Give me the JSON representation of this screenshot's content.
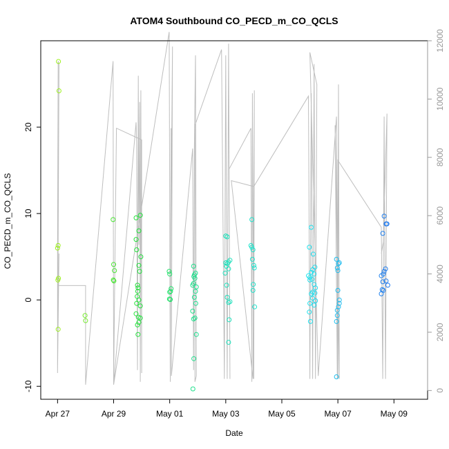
{
  "chart_data": {
    "type": "scatter",
    "title": "ATOM4 Southbound CO_PECD_m_CO_QCLS",
    "xlabel": "Date",
    "ylabel": "CO_PECD_m_CO_QCLS",
    "x_tick_labels": [
      "Apr 27",
      "Apr 29",
      "May 01",
      "May 03",
      "May 05",
      "May 07",
      "May 09"
    ],
    "x_tick_days": [
      0,
      2,
      4,
      6,
      8,
      10,
      12
    ],
    "xlim_days": [
      -0.6,
      13.2
    ],
    "ylim": [
      -11.5,
      30.0
    ],
    "y_ticks": [
      -10,
      0,
      10,
      20
    ],
    "y_tick_labels": [
      "-10",
      "0",
      "10",
      "20"
    ],
    "y2lim": [
      -300,
      12000
    ],
    "y2_ticks": [
      0,
      2000,
      4000,
      6000,
      8000,
      10000,
      12000
    ],
    "y2_tick_labels": [
      "0",
      "2000",
      "4000",
      "6000",
      "8000",
      "10000",
      "12000"
    ],
    "secondary_series_color": "#bebebe",
    "points_color_gradient": [
      "#9df01e",
      "#1ee03a",
      "#1ee0b8",
      "#1ee8ee",
      "#1e78ee"
    ],
    "points": [
      {
        "x": 0.03,
        "y": 27.6
      },
      {
        "x": 0.05,
        "y": 24.2
      },
      {
        "x": 0.02,
        "y": 6.3
      },
      {
        "x": 0.0,
        "y": 6.0
      },
      {
        "x": 0.03,
        "y": 2.5
      },
      {
        "x": 0.01,
        "y": 2.3
      },
      {
        "x": 0.02,
        "y": -3.4
      },
      {
        "x": 0.98,
        "y": -1.8
      },
      {
        "x": 1.0,
        "y": -2.4
      },
      {
        "x": 1.98,
        "y": 9.3
      },
      {
        "x": 2.0,
        "y": 4.1
      },
      {
        "x": 2.03,
        "y": 3.4
      },
      {
        "x": 1.99,
        "y": 2.3
      },
      {
        "x": 2.01,
        "y": 2.2
      },
      {
        "x": 2.8,
        "y": 9.5
      },
      {
        "x": 2.95,
        "y": 9.8
      },
      {
        "x": 2.9,
        "y": 8.0
      },
      {
        "x": 2.8,
        "y": 7.0
      },
      {
        "x": 2.82,
        "y": 5.8
      },
      {
        "x": 2.97,
        "y": 5.0
      },
      {
        "x": 2.9,
        "y": 4.0
      },
      {
        "x": 2.93,
        "y": 3.3
      },
      {
        "x": 2.85,
        "y": 1.7
      },
      {
        "x": 2.87,
        "y": 1.4
      },
      {
        "x": 2.86,
        "y": 1.0
      },
      {
        "x": 2.84,
        "y": 0.4
      },
      {
        "x": 2.9,
        "y": 0.0
      },
      {
        "x": 2.82,
        "y": -0.4
      },
      {
        "x": 2.95,
        "y": -0.7
      },
      {
        "x": 2.8,
        "y": -1.6
      },
      {
        "x": 2.88,
        "y": -2.0
      },
      {
        "x": 2.95,
        "y": -2.1
      },
      {
        "x": 2.9,
        "y": -2.6
      },
      {
        "x": 2.85,
        "y": -2.9
      },
      {
        "x": 2.87,
        "y": -4.0
      },
      {
        "x": 3.98,
        "y": 3.3
      },
      {
        "x": 4.0,
        "y": 3.0
      },
      {
        "x": 4.05,
        "y": 1.3
      },
      {
        "x": 4.03,
        "y": 1.0
      },
      {
        "x": 4.0,
        "y": 0.9
      },
      {
        "x": 3.99,
        "y": 0.1
      },
      {
        "x": 4.02,
        "y": 0.05
      },
      {
        "x": 4.85,
        "y": 3.9
      },
      {
        "x": 4.92,
        "y": 3.1
      },
      {
        "x": 4.88,
        "y": 2.9
      },
      {
        "x": 4.86,
        "y": 2.7
      },
      {
        "x": 4.9,
        "y": 2.5
      },
      {
        "x": 4.85,
        "y": 1.9
      },
      {
        "x": 4.82,
        "y": 1.7
      },
      {
        "x": 4.95,
        "y": 1.5
      },
      {
        "x": 4.92,
        "y": 1.0
      },
      {
        "x": 4.88,
        "y": 0.3
      },
      {
        "x": 4.93,
        "y": -0.4
      },
      {
        "x": 4.82,
        "y": -1.3
      },
      {
        "x": 4.9,
        "y": -2.1
      },
      {
        "x": 4.85,
        "y": -2.2
      },
      {
        "x": 4.95,
        "y": -4.0
      },
      {
        "x": 4.86,
        "y": -6.8
      },
      {
        "x": 4.83,
        "y": -10.3
      },
      {
        "x": 6.0,
        "y": 7.4
      },
      {
        "x": 6.05,
        "y": 7.3
      },
      {
        "x": 6.15,
        "y": 4.6
      },
      {
        "x": 6.1,
        "y": 4.4
      },
      {
        "x": 6.0,
        "y": 4.3
      },
      {
        "x": 6.05,
        "y": 4.2
      },
      {
        "x": 6.02,
        "y": 3.9
      },
      {
        "x": 6.1,
        "y": 3.6
      },
      {
        "x": 5.98,
        "y": 3.1
      },
      {
        "x": 6.03,
        "y": 1.7
      },
      {
        "x": 6.05,
        "y": 0.3
      },
      {
        "x": 6.1,
        "y": -0.3
      },
      {
        "x": 6.15,
        "y": -0.2
      },
      {
        "x": 6.12,
        "y": -2.3
      },
      {
        "x": 6.1,
        "y": -4.9
      },
      {
        "x": 6.93,
        "y": 9.3
      },
      {
        "x": 6.9,
        "y": 6.3
      },
      {
        "x": 6.93,
        "y": 6.1
      },
      {
        "x": 6.97,
        "y": 5.8
      },
      {
        "x": 6.95,
        "y": 4.7
      },
      {
        "x": 7.0,
        "y": 4.0
      },
      {
        "x": 7.02,
        "y": 3.7
      },
      {
        "x": 6.98,
        "y": 1.8
      },
      {
        "x": 6.97,
        "y": 1.1
      },
      {
        "x": 7.03,
        "y": -0.8
      },
      {
        "x": 8.98,
        "y": 6.1
      },
      {
        "x": 9.05,
        "y": 8.4
      },
      {
        "x": 9.12,
        "y": 5.3
      },
      {
        "x": 9.18,
        "y": 3.8
      },
      {
        "x": 9.1,
        "y": 3.5
      },
      {
        "x": 9.05,
        "y": 3.2
      },
      {
        "x": 9.15,
        "y": 3.0
      },
      {
        "x": 8.95,
        "y": 2.8
      },
      {
        "x": 9.0,
        "y": 2.6
      },
      {
        "x": 9.08,
        "y": 2.4
      },
      {
        "x": 9.0,
        "y": 2.3
      },
      {
        "x": 9.15,
        "y": 1.8
      },
      {
        "x": 9.2,
        "y": 1.4
      },
      {
        "x": 9.1,
        "y": 0.9
      },
      {
        "x": 9.18,
        "y": 0.8
      },
      {
        "x": 9.05,
        "y": 0.7
      },
      {
        "x": 9.1,
        "y": 0.2
      },
      {
        "x": 9.2,
        "y": -0.1
      },
      {
        "x": 9.0,
        "y": -0.4
      },
      {
        "x": 9.15,
        "y": -0.6
      },
      {
        "x": 8.98,
        "y": -1.4
      },
      {
        "x": 9.02,
        "y": -2.5
      },
      {
        "x": 9.95,
        "y": 4.7
      },
      {
        "x": 10.05,
        "y": 4.3
      },
      {
        "x": 10.02,
        "y": 4.2
      },
      {
        "x": 9.98,
        "y": 3.7
      },
      {
        "x": 10.0,
        "y": 3.4
      },
      {
        "x": 10.0,
        "y": 1.1
      },
      {
        "x": 10.05,
        "y": 0.0
      },
      {
        "x": 10.05,
        "y": -0.4
      },
      {
        "x": 10.02,
        "y": -0.8
      },
      {
        "x": 9.98,
        "y": -1.2
      },
      {
        "x": 9.98,
        "y": -1.8
      },
      {
        "x": 9.95,
        "y": -2.5
      },
      {
        "x": 9.95,
        "y": -8.9
      },
      {
        "x": 11.65,
        "y": 9.7
      },
      {
        "x": 11.72,
        "y": 8.8
      },
      {
        "x": 11.75,
        "y": 8.8
      },
      {
        "x": 11.6,
        "y": 7.7
      },
      {
        "x": 11.7,
        "y": 3.6
      },
      {
        "x": 11.65,
        "y": 3.3
      },
      {
        "x": 11.62,
        "y": 3.0
      },
      {
        "x": 11.55,
        "y": 2.8
      },
      {
        "x": 11.72,
        "y": 2.2
      },
      {
        "x": 11.6,
        "y": 2.1
      },
      {
        "x": 11.78,
        "y": 1.7
      },
      {
        "x": 11.58,
        "y": 1.2
      },
      {
        "x": 11.62,
        "y": 1.1
      },
      {
        "x": 11.55,
        "y": 0.7
      }
    ],
    "secondary_series": {
      "name": "",
      "axis": "right",
      "x": [
        0.0,
        0.0,
        0.02,
        0.05,
        0.0,
        0.05,
        0.03,
        1.0,
        1.0,
        1.98,
        2.0,
        2.0,
        2.8,
        2.82,
        2.85,
        2.88,
        2.9,
        2.93,
        2.95,
        2.97,
        3.0,
        3.0,
        2.1,
        2.05,
        2.0,
        3.98,
        4.02,
        4.05,
        4.03,
        4.1,
        4.06,
        4.82,
        4.85,
        4.88,
        4.92,
        4.95,
        4.9,
        4.9,
        5.85,
        5.95,
        6.0,
        6.05,
        6.1,
        6.15,
        6.12,
        6.9,
        6.93,
        6.95,
        7.0,
        7.02,
        6.97,
        6.2,
        7.0,
        8.95,
        9.0,
        9.05,
        9.1,
        9.15,
        9.2,
        9.25,
        9.0,
        9.3,
        9.95,
        10.0,
        10.02,
        10.05,
        9.9,
        9.98,
        10.0,
        11.55,
        11.6,
        11.65,
        11.7,
        11.75,
        11.62,
        11.55
      ],
      "y": [
        600,
        4700,
        11300,
        11200,
        600,
        4700,
        3600,
        3600,
        200,
        11300,
        200,
        200,
        9200,
        8500,
        700,
        10800,
        5000,
        9900,
        300,
        10300,
        600,
        8600,
        9000,
        4700,
        200,
        12300,
        300,
        9000,
        4000,
        11800,
        500,
        8300,
        700,
        8400,
        11500,
        500,
        300,
        9100,
        11700,
        400,
        11500,
        400,
        11900,
        400,
        7600,
        9000,
        300,
        10200,
        400,
        10300,
        400,
        7200,
        7000,
        10100,
        400,
        10200,
        400,
        11200,
        400,
        10500,
        11600,
        500,
        9400,
        400,
        10500,
        400,
        9100,
        400,
        7900,
        5600,
        400,
        9400,
        400,
        9500,
        5100,
        4700
      ],
      "color": "#bebebe"
    }
  }
}
